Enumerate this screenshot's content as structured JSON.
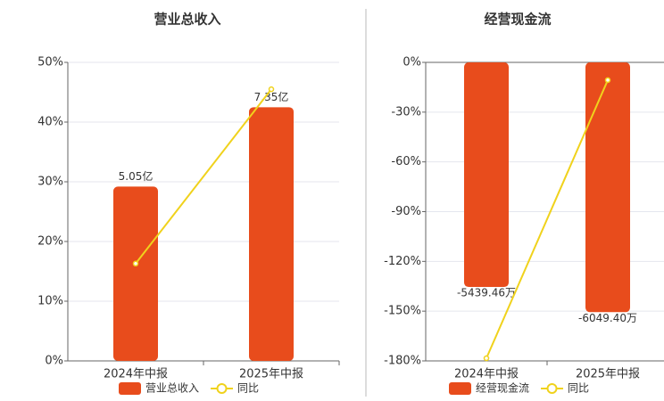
{
  "chart_data": [
    {
      "type": "bar",
      "title": "营业总收入",
      "categories": [
        "2024年中报",
        "2025年中报"
      ],
      "series": [
        {
          "name": "营业总收入",
          "type": "bar",
          "axis": "y2",
          "color": "#e84c1c",
          "values": [
            5.05,
            7.35
          ],
          "value_labels": [
            "5.05亿",
            "7.35亿"
          ]
        },
        {
          "name": "同比",
          "type": "line",
          "color": "#f0d21c",
          "values": [
            16.3,
            45.5
          ]
        }
      ],
      "ylim": [
        0,
        50
      ],
      "yticks": [
        {
          "value": 0,
          "label": "0%"
        },
        {
          "value": 10,
          "label": "10%"
        },
        {
          "value": 20,
          "label": "20%"
        },
        {
          "value": 30,
          "label": "30%"
        },
        {
          "value": 40,
          "label": "40%"
        },
        {
          "value": 50,
          "label": "50%"
        }
      ],
      "y2lim": [
        0,
        8.65
      ],
      "grid": true,
      "legend": "bottom"
    },
    {
      "type": "bar",
      "title": "经营现金流",
      "categories": [
        "2024年中报",
        "2025年中报"
      ],
      "series": [
        {
          "name": "经营现金流",
          "type": "bar",
          "axis": "y2",
          "color": "#e84c1c",
          "values": [
            -5439.46,
            -6049.4
          ],
          "value_labels": [
            "-5439.46万",
            "-6049.40万"
          ]
        },
        {
          "name": "同比",
          "type": "line",
          "color": "#f0d21c",
          "values": [
            -178.4,
            -10.7
          ]
        }
      ],
      "ylim": [
        -180,
        0
      ],
      "yticks": [
        {
          "value": 0,
          "label": "0%"
        },
        {
          "value": -30,
          "label": "-30%"
        },
        {
          "value": -60,
          "label": "-60%"
        },
        {
          "value": -90,
          "label": "-90%"
        },
        {
          "value": -120,
          "label": "-120%"
        },
        {
          "value": -150,
          "label": "-150%"
        },
        {
          "value": -180,
          "label": "-180%"
        }
      ],
      "y2lim": [
        -7230,
        0
      ],
      "grid": true,
      "legend": "bottom"
    }
  ]
}
